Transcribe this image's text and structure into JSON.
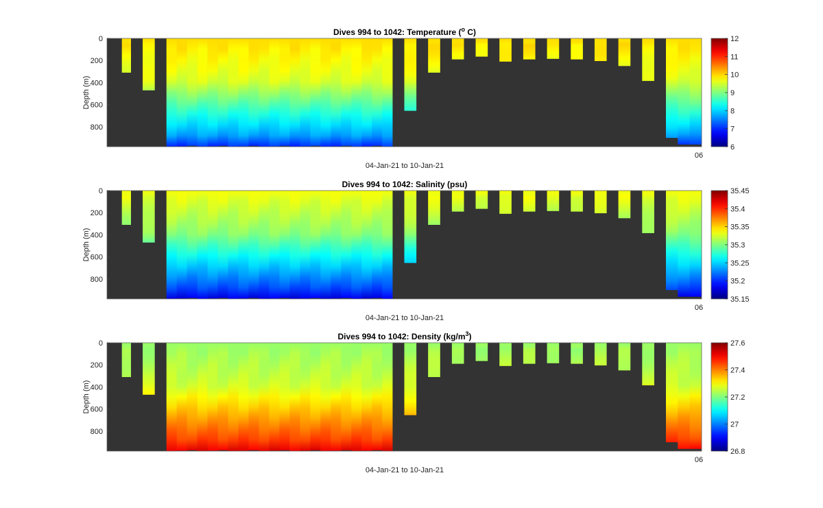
{
  "figure": {
    "background": "#ffffff",
    "no_data_color": "#333333"
  },
  "chart_data": [
    {
      "type": "heatmap",
      "title": "Dives 994 to 1042: Temperature (",
      "title_super": "o",
      "title_after": " C)",
      "xlabel": "04-Jan-21 to 10-Jan-21",
      "ylabel": "Depth (m)",
      "ylim": [
        0,
        980
      ],
      "y_reversed": true,
      "yticks": [
        0,
        200,
        400,
        600,
        800
      ],
      "x_tick_label": "06",
      "colormap": "jet",
      "clim": [
        6,
        12
      ],
      "colorbar_ticks": [
        12,
        11,
        10,
        9,
        8,
        7,
        6
      ],
      "variable": "temperature",
      "profile": {
        "surface": 9.95,
        "thermo_top": 380,
        "thermo_value": 9.55,
        "deep_depth": 880,
        "deep_value": 7.7,
        "bottom_value": 7.0,
        "wiggle": 0.12
      }
    },
    {
      "type": "heatmap",
      "title": "Dives 994 to 1042: Salinity (psu)",
      "title_super": "",
      "title_after": "",
      "xlabel": "04-Jan-21 to 10-Jan-21",
      "ylabel": "Depth (m)",
      "ylim": [
        0,
        980
      ],
      "y_reversed": true,
      "yticks": [
        0,
        200,
        400,
        600,
        800
      ],
      "x_tick_label": "06",
      "colormap": "jet",
      "clim": [
        35.15,
        35.45
      ],
      "colorbar_ticks": [
        35.45,
        35.4,
        35.35,
        35.3,
        35.25,
        35.2,
        35.15
      ],
      "variable": "salinity",
      "profile": {
        "surface": 35.335,
        "thermo_top": 380,
        "thermo_value": 35.305,
        "deep_depth": 880,
        "deep_value": 35.21,
        "bottom_value": 35.18,
        "wiggle": 0.006
      }
    },
    {
      "type": "heatmap",
      "title": "Dives 994 to 1042: Density (kg/m",
      "title_super": "3",
      "title_after": ")",
      "xlabel": "04-Jan-21 to 10-Jan-21",
      "ylabel": "Depth (m)",
      "ylim": [
        0,
        980
      ],
      "y_reversed": true,
      "yticks": [
        0,
        200,
        400,
        600,
        800
      ],
      "x_tick_label": "06",
      "colormap": "jet",
      "clim": [
        26.8,
        27.6
      ],
      "colorbar_ticks": [
        27.6,
        27.4,
        27.2,
        27,
        26.8
      ],
      "variable": "density",
      "profile": {
        "surface": 27.22,
        "thermo_top": 380,
        "thermo_value": 27.26,
        "deep_depth": 880,
        "deep_value": 27.45,
        "bottom_value": 27.52,
        "wiggle": 0.015
      }
    }
  ],
  "dives": [
    {
      "x_start": 0.025,
      "x_end": 0.04,
      "max_depth": 310
    },
    {
      "x_start": 0.06,
      "x_end": 0.08,
      "max_depth": 470
    },
    {
      "x_start": 0.1,
      "x_end": 0.48,
      "max_depth": 980,
      "columns": 22
    },
    {
      "x_start": 0.5,
      "x_end": 0.52,
      "max_depth": 655
    },
    {
      "x_start": 0.54,
      "x_end": 0.56,
      "max_depth": 310
    },
    {
      "x_start": 0.58,
      "x_end": 0.6,
      "max_depth": 190
    },
    {
      "x_start": 0.62,
      "x_end": 0.64,
      "max_depth": 165
    },
    {
      "x_start": 0.66,
      "x_end": 0.68,
      "max_depth": 210
    },
    {
      "x_start": 0.7,
      "x_end": 0.72,
      "max_depth": 190
    },
    {
      "x_start": 0.74,
      "x_end": 0.76,
      "max_depth": 185
    },
    {
      "x_start": 0.78,
      "x_end": 0.8,
      "max_depth": 190
    },
    {
      "x_start": 0.82,
      "x_end": 0.84,
      "max_depth": 205
    },
    {
      "x_start": 0.86,
      "x_end": 0.88,
      "max_depth": 250
    },
    {
      "x_start": 0.9,
      "x_end": 0.92,
      "max_depth": 385
    },
    {
      "x_start": 0.94,
      "x_end": 0.96,
      "max_depth": 900
    },
    {
      "x_start": 0.96,
      "x_end": 0.98,
      "max_depth": 960
    },
    {
      "x_start": 0.98,
      "x_end": 1.0,
      "max_depth": 960
    }
  ]
}
